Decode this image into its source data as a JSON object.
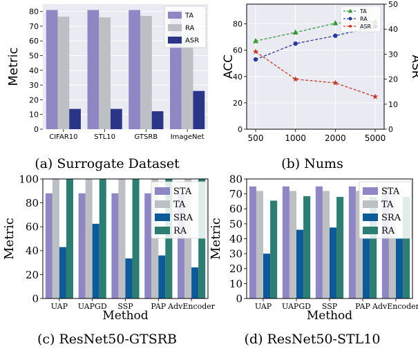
{
  "chart_data": [
    {
      "type": "bar",
      "caption": "(a) Surrogate Dataset",
      "ylabel": "Metric",
      "xlabel": "",
      "ylim": [
        0,
        85
      ],
      "yticks": [
        0,
        10,
        20,
        30,
        40,
        50,
        60,
        70,
        80
      ],
      "categories": [
        "CIFAR10",
        "STL10",
        "GTSRB",
        "ImageNet"
      ],
      "series": [
        {
          "name": "TA",
          "values": [
            81,
            81,
            81,
            81
          ]
        },
        {
          "name": "RA",
          "values": [
            76.5,
            76,
            77,
            65
          ]
        },
        {
          "name": "ASR",
          "values": [
            13.8,
            13.8,
            12.2,
            26
          ]
        }
      ],
      "colors": [
        "#8f87c4",
        "#bcc0c4",
        "#2a3588"
      ],
      "legend": "top-right",
      "grid": true
    },
    {
      "type": "line",
      "caption": "(b) Nums",
      "ylabel": "ACC",
      "y2label": "ASR",
      "x": [
        "500",
        "1000",
        "2000",
        "5000"
      ],
      "ylim": [
        0,
        95
      ],
      "yticks": [
        0,
        20,
        40,
        60,
        80
      ],
      "y2lim": [
        0,
        50
      ],
      "y2ticks": [
        0,
        10,
        20,
        30,
        40,
        50
      ],
      "series": [
        {
          "name": "TA",
          "axis": "left",
          "color": "#3a9a3a",
          "marker": "triangle",
          "values": [
            67,
            73.5,
            80.5,
            81.5
          ]
        },
        {
          "name": "RA",
          "axis": "left",
          "color": "#2a3a98",
          "marker": "circle",
          "values": [
            53,
            65,
            71,
            78
          ]
        },
        {
          "name": "ASR",
          "axis": "right",
          "color": "#c23a2a",
          "marker": "star",
          "values": [
            31,
            20,
            18.5,
            13
          ]
        }
      ],
      "legend": "top-right",
      "grid": true
    },
    {
      "type": "bar",
      "caption": "(c) ResNet50-GTSRB",
      "ylabel": "Metric",
      "xlabel": "Method",
      "ylim": [
        0,
        100
      ],
      "yticks": [
        0,
        20,
        40,
        60,
        80,
        100
      ],
      "categories": [
        "UAP",
        "UAPGD",
        "SSP",
        "PAP",
        "AdvEncoder"
      ],
      "series": [
        {
          "name": "STA",
          "values": [
            88,
            88,
            88,
            88,
            88
          ]
        },
        {
          "name": "TA",
          "values": [
            100,
            100,
            100,
            100,
            100
          ]
        },
        {
          "name": "SRA",
          "values": [
            43,
            62.5,
            33.5,
            36,
            26
          ]
        },
        {
          "name": "RA",
          "values": [
            100,
            100,
            100,
            100,
            100
          ]
        }
      ],
      "colors": [
        "#8f87c4",
        "#bcc0c4",
        "#0d5a99",
        "#2e7d72"
      ],
      "legend": "top-right",
      "grid": true
    },
    {
      "type": "bar",
      "caption": "(d) ResNet50-STL10",
      "ylabel": "Metric",
      "xlabel": "Method",
      "ylim": [
        0,
        80
      ],
      "yticks": [
        0,
        10,
        20,
        30,
        40,
        50,
        60,
        70,
        80
      ],
      "categories": [
        "UAP",
        "UAPGD",
        "SSP",
        "PAP",
        "AdvEncoder"
      ],
      "series": [
        {
          "name": "STA",
          "values": [
            75,
            75,
            75,
            75,
            75
          ]
        },
        {
          "name": "TA",
          "values": [
            72,
            72,
            72,
            72,
            72
          ]
        },
        {
          "name": "SRA",
          "values": [
            30,
            46,
            47.5,
            40,
            40
          ]
        },
        {
          "name": "RA",
          "values": [
            65.5,
            68.5,
            68,
            68,
            68
          ]
        }
      ],
      "colors": [
        "#8f87c4",
        "#bcc0c4",
        "#0d5a99",
        "#2e7d72"
      ],
      "legend": "top-right",
      "grid": true
    }
  ]
}
